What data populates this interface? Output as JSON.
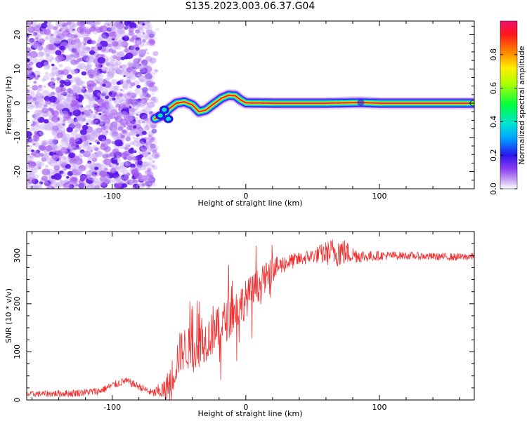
{
  "title": "S135.2023.003.06.37.G04",
  "chart_data": [
    {
      "type": "heatmap",
      "xlabel": "Height of straight line (km)",
      "ylabel": "Frequency (Hz)",
      "xlim": [
        -164,
        171
      ],
      "ylim": [
        -25,
        24
      ],
      "xticks": [
        -100,
        0,
        100
      ],
      "yticks": [
        -20,
        -10,
        0,
        10,
        20
      ],
      "colorbar": {
        "label": "Normalized spectral amplitude",
        "range": [
          0,
          1
        ],
        "ticks": [
          0.0,
          0.2,
          0.4,
          0.6,
          0.8
        ]
      },
      "noise_region": {
        "x": [
          -164,
          -68
        ],
        "y": [
          -25,
          24
        ]
      },
      "ridge": {
        "x": [
          -68,
          -62,
          -57,
          -52,
          -46,
          -40,
          -35,
          -30,
          -24,
          -18,
          -13,
          -8,
          -4,
          0,
          20,
          60,
          86,
          100,
          150,
          170
        ],
        "y": [
          -4.5,
          -3.5,
          -1.5,
          0,
          0.4,
          -0.5,
          -2.5,
          -2,
          -0.2,
          1.5,
          2.3,
          2.2,
          1,
          0.1,
          0,
          0,
          0.2,
          0,
          0,
          0
        ]
      }
    },
    {
      "type": "line",
      "xlabel": "Height of straight line (km)",
      "ylabel": "SNR (10 * v/v)",
      "xlim": [
        -164,
        171
      ],
      "ylim": [
        0,
        350
      ],
      "xticks": [
        -100,
        0,
        100
      ],
      "yticks": [
        0,
        100,
        200,
        300
      ],
      "color": "#f03232",
      "x": [
        -164,
        -130,
        -110,
        -100,
        -90,
        -80,
        -70,
        -60,
        -55,
        -50,
        -45,
        -40,
        -30,
        -20,
        -10,
        0,
        10,
        20,
        30,
        40,
        50,
        60,
        70,
        80,
        90,
        100,
        120,
        140,
        160,
        171
      ],
      "y": [
        12,
        14,
        18,
        30,
        40,
        28,
        14,
        22,
        50,
        95,
        110,
        100,
        125,
        150,
        180,
        210,
        240,
        270,
        285,
        292,
        300,
        305,
        310,
        302,
        298,
        300,
        300,
        298,
        297,
        298
      ],
      "amp": [
        6,
        8,
        8,
        8,
        8,
        8,
        8,
        25,
        40,
        45,
        45,
        45,
        45,
        45,
        45,
        40,
        35,
        25,
        18,
        15,
        15,
        25,
        35,
        18,
        12,
        10,
        8,
        8,
        8,
        8
      ]
    }
  ],
  "colors": {
    "noise": "#a55af0",
    "noise_dark": "#5a14e6",
    "line": "#f03232"
  }
}
